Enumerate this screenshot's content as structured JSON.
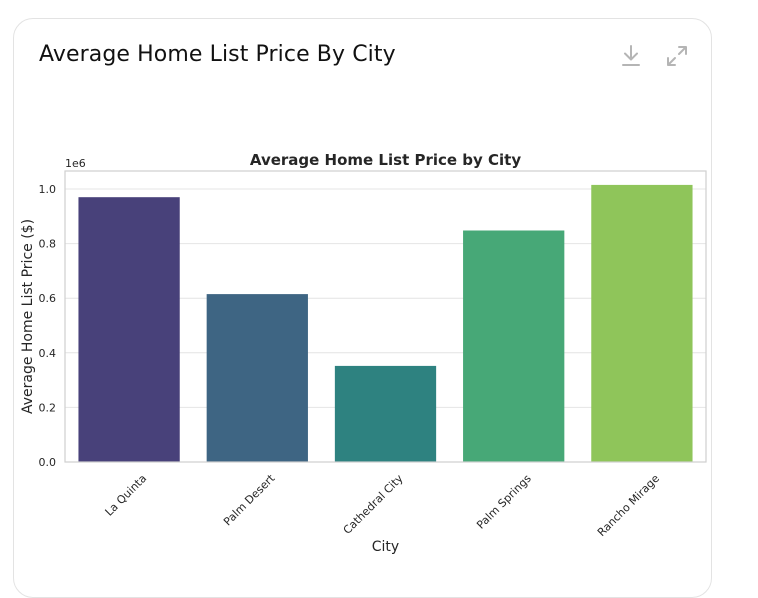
{
  "card": {
    "title": "Average Home List Price By City",
    "tools": [
      {
        "icon": "download-icon"
      },
      {
        "icon": "expand-icon"
      }
    ]
  },
  "chart_data": {
    "type": "bar",
    "title": "Average Home List Price by City",
    "xlabel": "City",
    "ylabel": "Average Home List Price ($)",
    "y_multiplier_label": "1e6",
    "categories": [
      "La Quinta",
      "Palm Desert",
      "Cathedral City",
      "Palm Springs",
      "Rancho Mirage"
    ],
    "values": [
      970000,
      615000,
      352000,
      848000,
      1015000
    ],
    "colors": [
      "#48417a",
      "#3e6583",
      "#2e8280",
      "#47a877",
      "#8fc55a"
    ],
    "ylim": [
      0,
      1000000
    ],
    "yticks": [
      0,
      200000,
      400000,
      600000,
      800000,
      1000000
    ],
    "ytick_labels": [
      "0.0",
      "0.2",
      "0.4",
      "0.6",
      "0.8",
      "1.0"
    ],
    "grid": true,
    "legend": "none"
  }
}
